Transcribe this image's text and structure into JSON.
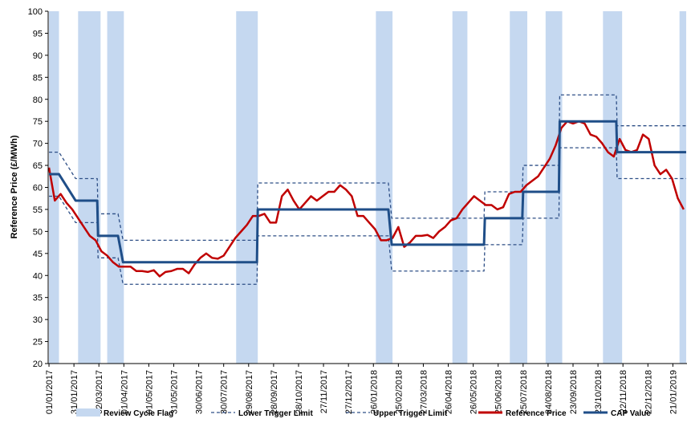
{
  "chart_data": {
    "type": "line",
    "ylabel": "Reference Price (£/MWh)",
    "ylim": [
      20,
      100
    ],
    "yticks": [
      20,
      25,
      30,
      35,
      40,
      45,
      50,
      55,
      60,
      65,
      70,
      75,
      80,
      85,
      90,
      95,
      100
    ],
    "xlim": [
      "31/12/2016",
      "07/02/2019"
    ],
    "xticks": [
      "01/01/2017",
      "31/01/2017",
      "02/03/2017",
      "01/04/2017",
      "01/05/2017",
      "31/05/2017",
      "30/06/2017",
      "30/07/2017",
      "29/08/2017",
      "28/09/2017",
      "28/10/2017",
      "27/11/2017",
      "27/12/2017",
      "26/01/2018",
      "25/02/2018",
      "27/03/2018",
      "26/04/2018",
      "26/05/2018",
      "25/06/2018",
      "25/07/2018",
      "24/08/2018",
      "23/09/2018",
      "23/10/2018",
      "22/11/2018",
      "22/12/2018",
      "21/01/2019"
    ],
    "grid": false,
    "legend": "bottom",
    "series": [
      {
        "name": "Review Cycle Flag",
        "type": "band",
        "color": "#c5d8f0",
        "ranges": [
          [
            "01/01/2017",
            "13/01/2017"
          ],
          [
            "05/02/2017",
            "04/03/2017"
          ],
          [
            "12/03/2017",
            "01/04/2017"
          ],
          [
            "14/08/2017",
            "09/09/2017"
          ],
          [
            "29/01/2018",
            "18/02/2018"
          ],
          [
            "01/05/2018",
            "19/05/2018"
          ],
          [
            "09/07/2018",
            "30/07/2018"
          ],
          [
            "21/08/2018",
            "10/09/2018"
          ],
          [
            "29/10/2018",
            "21/11/2018"
          ],
          [
            "29/01/2019",
            "06/02/2019"
          ]
        ]
      },
      {
        "name": "Lower Trigger Limit",
        "type": "line",
        "style": "dashed",
        "color": "#2e4f86",
        "x": [
          "01/01/2017",
          "13/01/2017",
          "02/02/2017",
          "28/02/2017",
          "01/03/2017",
          "25/03/2017",
          "31/03/2017",
          "08/09/2017",
          "09/09/2017",
          "13/02/2018",
          "17/02/2018",
          "08/06/2018",
          "09/06/2018",
          "24/07/2018",
          "25/07/2018",
          "06/09/2018",
          "07/09/2018",
          "14/11/2018",
          "15/11/2018",
          "06/02/2019"
        ],
        "values": [
          58,
          58,
          52,
          52,
          44,
          44,
          38,
          38,
          49,
          49,
          41,
          41,
          47,
          47,
          53,
          53,
          69,
          69,
          62,
          62
        ]
      },
      {
        "name": "Upper Trigger Limit",
        "type": "line",
        "style": "dashed",
        "color": "#2e4f86",
        "x": [
          "01/01/2017",
          "13/01/2017",
          "02/02/2017",
          "28/02/2017",
          "01/03/2017",
          "25/03/2017",
          "31/03/2017",
          "08/09/2017",
          "09/09/2017",
          "13/02/2018",
          "17/02/2018",
          "08/06/2018",
          "09/06/2018",
          "24/07/2018",
          "25/07/2018",
          "06/09/2018",
          "07/09/2018",
          "14/11/2018",
          "15/11/2018",
          "06/02/2019"
        ],
        "values": [
          68,
          68,
          62,
          62,
          54,
          54,
          48,
          48,
          61,
          61,
          53,
          53,
          59,
          59,
          65,
          65,
          81,
          81,
          74,
          74
        ]
      },
      {
        "name": "Reference Price",
        "type": "line",
        "style": "solid",
        "color": "#c00000",
        "x": [
          "01/01/2017",
          "08/01/2017",
          "15/01/2017",
          "22/01/2017",
          "29/01/2017",
          "05/02/2017",
          "12/02/2017",
          "19/02/2017",
          "26/02/2017",
          "05/03/2017",
          "12/03/2017",
          "19/03/2017",
          "26/03/2017",
          "02/04/2017",
          "09/04/2017",
          "16/04/2017",
          "23/04/2017",
          "30/04/2017",
          "07/05/2017",
          "14/05/2017",
          "21/05/2017",
          "28/05/2017",
          "04/06/2017",
          "11/06/2017",
          "18/06/2017",
          "25/06/2017",
          "02/07/2017",
          "09/07/2017",
          "16/07/2017",
          "23/07/2017",
          "30/07/2017",
          "06/08/2017",
          "13/08/2017",
          "20/08/2017",
          "27/08/2017",
          "03/09/2017",
          "10/09/2017",
          "17/09/2017",
          "24/09/2017",
          "01/10/2017",
          "08/10/2017",
          "15/10/2017",
          "22/10/2017",
          "29/10/2017",
          "05/11/2017",
          "12/11/2017",
          "19/11/2017",
          "26/11/2017",
          "03/12/2017",
          "10/12/2017",
          "17/12/2017",
          "24/12/2017",
          "31/12/2017",
          "07/01/2018",
          "14/01/2018",
          "21/01/2018",
          "28/01/2018",
          "04/02/2018",
          "11/02/2018",
          "18/02/2018",
          "25/02/2018",
          "04/03/2018",
          "11/03/2018",
          "18/03/2018",
          "25/03/2018",
          "01/04/2018",
          "08/04/2018",
          "15/04/2018",
          "22/04/2018",
          "29/04/2018",
          "06/05/2018",
          "13/05/2018",
          "20/05/2018",
          "27/05/2018",
          "03/06/2018",
          "10/06/2018",
          "17/06/2018",
          "24/06/2018",
          "01/07/2018",
          "08/07/2018",
          "15/07/2018",
          "22/07/2018",
          "29/07/2018",
          "05/08/2018",
          "12/08/2018",
          "19/08/2018",
          "26/08/2018",
          "02/09/2018",
          "09/09/2018",
          "16/09/2018",
          "23/09/2018",
          "30/09/2018",
          "07/10/2018",
          "14/10/2018",
          "21/10/2018",
          "28/10/2018",
          "04/11/2018",
          "11/11/2018",
          "18/11/2018",
          "25/11/2018",
          "02/12/2018",
          "09/12/2018",
          "16/12/2018",
          "23/12/2018",
          "30/12/2018",
          "06/01/2019",
          "13/01/2019",
          "20/01/2019",
          "27/01/2019",
          "03/02/2019"
        ],
        "values": [
          64.5,
          57,
          58.5,
          56.5,
          55,
          53,
          51,
          49,
          48,
          45.5,
          44.5,
          43,
          42,
          42,
          42,
          41,
          41,
          40.8,
          41.2,
          39.8,
          40.8,
          41,
          41.5,
          41.5,
          40.5,
          42.5,
          44,
          45,
          44,
          43.8,
          44.5,
          46.5,
          48.5,
          50,
          51.5,
          53.5,
          53.5,
          54,
          52,
          52,
          58,
          59.5,
          57,
          55,
          56.5,
          58,
          57,
          58,
          59,
          59,
          60.5,
          59.5,
          58,
          53.5,
          53.5,
          52,
          50.5,
          48,
          48,
          48.5,
          51,
          46.5,
          47.5,
          49,
          49,
          49.2,
          48.5,
          50,
          51,
          52.5,
          53,
          55,
          56.5,
          58,
          57,
          56,
          56,
          55,
          55.5,
          58.5,
          59,
          59,
          60.5,
          61.5,
          62.5,
          64.5,
          66.5,
          69.5,
          73.5,
          75,
          74.5,
          75,
          74.5,
          72,
          71.5,
          70,
          68,
          67,
          71,
          68.5,
          68,
          68.5,
          72,
          71,
          65,
          63,
          64,
          62,
          57.5,
          55
        ]
      },
      {
        "name": "CAP Value",
        "type": "line",
        "style": "solid",
        "color": "#1f4e88",
        "x": [
          "01/01/2017",
          "13/01/2017",
          "02/02/2017",
          "28/02/2017",
          "01/03/2017",
          "25/03/2017",
          "31/03/2017",
          "08/09/2017",
          "09/09/2017",
          "13/02/2018",
          "17/02/2018",
          "08/06/2018",
          "09/06/2018",
          "24/07/2018",
          "25/07/2018",
          "06/09/2018",
          "07/09/2018",
          "14/11/2018",
          "15/11/2018",
          "06/02/2019"
        ],
        "values": [
          63,
          63,
          57,
          57,
          49,
          49,
          43,
          43,
          55,
          55,
          47,
          47,
          53,
          53,
          59,
          59,
          75,
          75,
          68,
          68
        ]
      }
    ]
  }
}
